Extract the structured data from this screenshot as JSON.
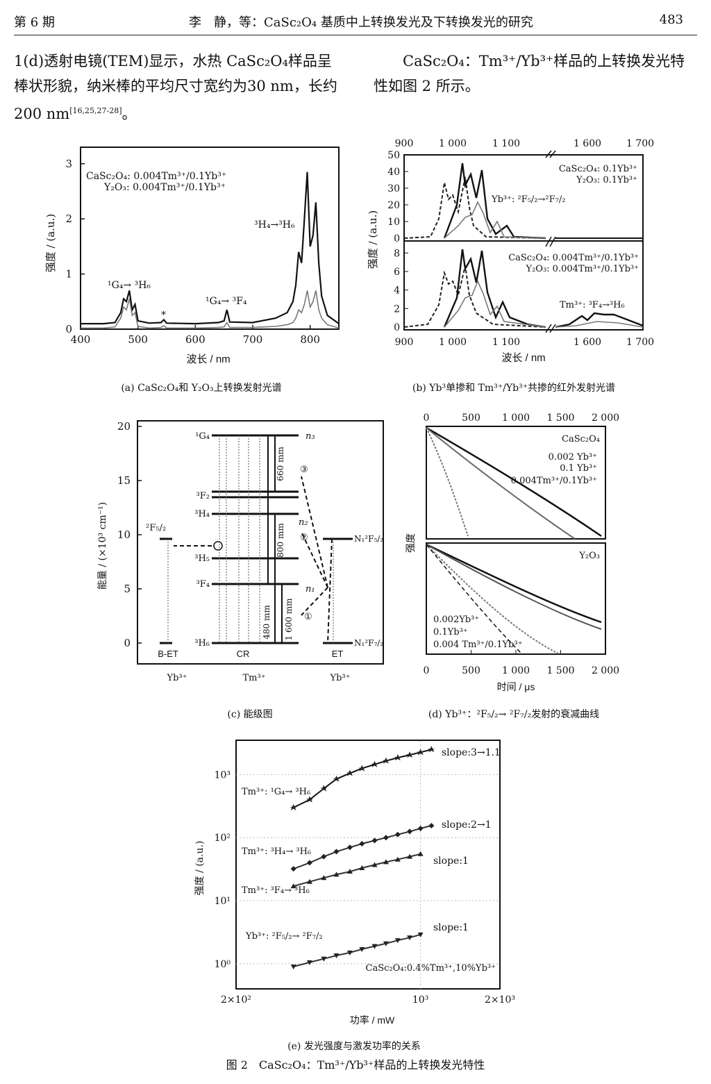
{
  "header": {
    "issue": "第 6 期",
    "title": "李　静，等：CaSc₂O₄ 基质中上转换发光及下转换发光的研究",
    "page": "483"
  },
  "paragraphs": {
    "left_1": "1(d)透射电镜(TEM)显示，水热 CaSc₂O₄样品呈",
    "left_2": "棒状形貌，纳米棒的平均尺寸宽约为30 nm，长约",
    "left_3": "200 nm",
    "left_3_ref": "[16,25,27-28]",
    "left_3_end": "。",
    "right_1": "CaSc₂O₄：Tm³⁺/Yb³⁺样品的上转换发光特",
    "right_2": "性如图 2 所示。"
  },
  "captions": {
    "a": "(a) CaSc₂O₄和 Y₂O₃上转换发射光谱",
    "b": "(b) Yb³单掺和 Tm³⁺/Yb³⁺共掺的红外发射光谱",
    "c": "(c) 能级图",
    "d": "(d) Yb³⁺：²F₅/₂→ ²F₇/₂发射的衰减曲线",
    "e": "(e) 发光强度与激发功率的关系",
    "figure": "图 2　CaSc₂O₄：Tm³⁺/Yb³⁺样品的上转换发光特性"
  },
  "figure_text": {
    "a": {
      "legend_1": "CaSc₂O₄: 0.004Tm³⁺/0.1Yb³⁺",
      "legend_2": "Y₂O₃: 0.004Tm³⁺/0.1Yb³⁺",
      "label_g4h6": "¹G₄→ ³H₆",
      "label_g4f4": "¹G₄→ ³F₄",
      "label_h4h6": "³H₄→³H₆",
      "star": "*"
    },
    "b": {
      "legend_top_1": "CaSc₂O₄: 0.1Yb³⁺",
      "legend_top_2": "Y₂O₃: 0.1Yb³⁺",
      "label_yb": "Yb³⁺: ²F₅/₂→²F₇/₂",
      "legend_bot_1": "CaSc₂O₄: 0.004Tm³⁺/0.1Yb³⁺",
      "legend_bot_2": "Y₂O₃: 0.004Tm³⁺/0.1Yb³⁺",
      "label_tm": "Tm³⁺: ³F₄→³H₆"
    },
    "c": {
      "levels_tm": [
        "¹G₄",
        "³F₂",
        "³H₄",
        "³H₅",
        "³F₄",
        "³H₆"
      ],
      "level_yb": "²F₅/₂",
      "n_labels": [
        "n₃",
        "n₂",
        "n₁"
      ],
      "arrow_labels": [
        "660 mm",
        "800 mm",
        "480 mm",
        "1 600 mm"
      ],
      "circled": [
        "③",
        "②",
        "①"
      ],
      "right_labels": [
        "N₁²F₅/₂",
        "N₁²F₇/₂"
      ],
      "bottom_labels": [
        "B-ET",
        "CR",
        "ET"
      ],
      "ion_labels": [
        "Yb³⁺",
        "Tm³⁺",
        "Yb³⁺"
      ]
    },
    "d": {
      "panel_top": "CaSc₂O₄",
      "panel_bottom": "Y₂O₃",
      "legend_top": [
        "0.002 Yb³⁺",
        "0.1 Yb³⁺",
        "0.004Tm³⁺/0.1Yb³⁺"
      ],
      "legend_bottom": [
        "0.002Yb³⁺",
        "0.1Yb³⁺",
        "0.004 Tm³⁺/0.1Yb³⁺"
      ]
    },
    "e": {
      "series_labels": [
        "Tm³⁺: ¹G₄→ ³H₆",
        "Tm³⁺: ³H₄→ ³H₆",
        "Tm³⁺: ³F₄→ ³H₆",
        "Yb³⁺: ²F₅/₂→ ²F₇/₂"
      ],
      "slope_labels": [
        "slope:3→1.1",
        "slope:2→1",
        "slope:1",
        "slope:1"
      ],
      "sample": "CaSc₂O₄:0.4%Tm³⁺,10%Yb³⁺"
    }
  },
  "chart_data": [
    {
      "type": "line",
      "id": "a",
      "xlabel": "波长 / nm",
      "ylabel": "强度 / (a.u.)",
      "xlim": [
        400,
        850
      ],
      "ylim": [
        0,
        3.3
      ],
      "xticks": [
        400,
        500,
        600,
        700,
        800
      ],
      "yticks": [
        0,
        1,
        2,
        3
      ],
      "series": [
        {
          "name": "CaSc₂O₄: 0.004Tm³⁺/0.1Yb³⁺",
          "x": [
            400,
            440,
            460,
            470,
            475,
            480,
            485,
            490,
            495,
            500,
            520,
            540,
            545,
            550,
            600,
            640,
            650,
            655,
            660,
            700,
            740,
            760,
            770,
            775,
            780,
            785,
            790,
            795,
            800,
            805,
            810,
            815,
            820,
            830,
            850
          ],
          "y": [
            0.1,
            0.1,
            0.12,
            0.3,
            0.55,
            0.5,
            0.7,
            0.35,
            0.45,
            0.15,
            0.11,
            0.12,
            0.17,
            0.11,
            0.1,
            0.12,
            0.15,
            0.35,
            0.13,
            0.12,
            0.2,
            0.3,
            0.5,
            0.8,
            1.4,
            1.2,
            2.0,
            2.85,
            1.5,
            1.7,
            2.3,
            1.2,
            0.6,
            0.25,
            0.1
          ]
        },
        {
          "name": "Y₂O₃: 0.004Tm³⁺/0.1Yb³⁺",
          "x": [
            400,
            440,
            460,
            470,
            475,
            480,
            485,
            490,
            495,
            500,
            520,
            540,
            545,
            550,
            600,
            640,
            650,
            655,
            660,
            700,
            740,
            760,
            770,
            775,
            780,
            785,
            790,
            795,
            800,
            805,
            810,
            815,
            820,
            830,
            850
          ],
          "y": [
            0.02,
            0.02,
            0.04,
            0.2,
            0.4,
            0.35,
            0.55,
            0.25,
            0.3,
            0.05,
            0.02,
            0.03,
            0.06,
            0.02,
            0.02,
            0.03,
            0.04,
            0.12,
            0.03,
            0.03,
            0.05,
            0.08,
            0.12,
            0.2,
            0.35,
            0.3,
            0.45,
            0.7,
            0.4,
            0.5,
            0.7,
            0.35,
            0.2,
            0.08,
            0.02
          ]
        }
      ]
    },
    {
      "type": "line",
      "id": "b",
      "xlabel": "波长 / nm",
      "ylabel": "强度 / (a.u.)",
      "xticks_labels": [
        "900",
        "1 000",
        "1 100",
        "1 600",
        "1 700"
      ],
      "yticks_top": [
        0,
        10,
        20,
        30,
        40,
        50
      ],
      "yticks_bottom": [
        0,
        2,
        4,
        6,
        8
      ],
      "ylim_top": [
        0,
        50
      ],
      "ylim_bottom": [
        0,
        9
      ]
    },
    {
      "type": "other",
      "id": "c",
      "ylabel": "能量 / (×10³ cm⁻¹)",
      "yticks": [
        0,
        5,
        10,
        15,
        20
      ],
      "ylim": [
        0,
        20
      ]
    },
    {
      "type": "line",
      "id": "d",
      "xlabel": "时间 / μs",
      "ylabel": "强度",
      "xticks": [
        0,
        500,
        1000,
        1500,
        2000
      ],
      "xtick_labels": [
        "0",
        "500",
        "1 000",
        "1 500",
        "2 000"
      ],
      "xlim": [
        0,
        2000
      ]
    },
    {
      "type": "scatter",
      "id": "e",
      "xlabel": "功率 / mW",
      "ylabel": "强度 / (a.u.)",
      "xscale": "log",
      "yscale": "log",
      "xtick_labels": [
        "2×10²",
        "10³",
        "2×10³"
      ],
      "ytick_labels": [
        "10⁰",
        "10¹",
        "10²",
        "10³"
      ],
      "series": [
        {
          "name": "Tm³⁺: ¹G₄→ ³H₆",
          "x": [
            330,
            380,
            430,
            480,
            540,
            600,
            670,
            740,
            820,
            910,
            1000,
            1100
          ],
          "y": [
            300,
            400,
            600,
            850,
            1050,
            1250,
            1450,
            1650,
            1850,
            2050,
            2250,
            2500
          ]
        },
        {
          "name": "Tm³⁺: ³H₄→ ³H₆",
          "x": [
            330,
            380,
            430,
            480,
            540,
            600,
            670,
            740,
            820,
            910,
            1000,
            1100
          ],
          "y": [
            32,
            40,
            50,
            60,
            70,
            80,
            90,
            100,
            112,
            125,
            140,
            155
          ]
        },
        {
          "name": "Tm³⁺: ³F₄→ ³H₆",
          "x": [
            330,
            380,
            430,
            480,
            540,
            600,
            670,
            740,
            820,
            910,
            1000
          ],
          "y": [
            17,
            20,
            23,
            26,
            29,
            33,
            37,
            41,
            45,
            50,
            55
          ]
        },
        {
          "name": "Yb³⁺: ²F₅/₂→ ²F₇/₂",
          "x": [
            330,
            380,
            430,
            480,
            540,
            600,
            670,
            740,
            820,
            910,
            1000
          ],
          "y": [
            0.9,
            1.05,
            1.2,
            1.35,
            1.5,
            1.7,
            1.9,
            2.1,
            2.35,
            2.6,
            2.9
          ]
        }
      ]
    }
  ]
}
